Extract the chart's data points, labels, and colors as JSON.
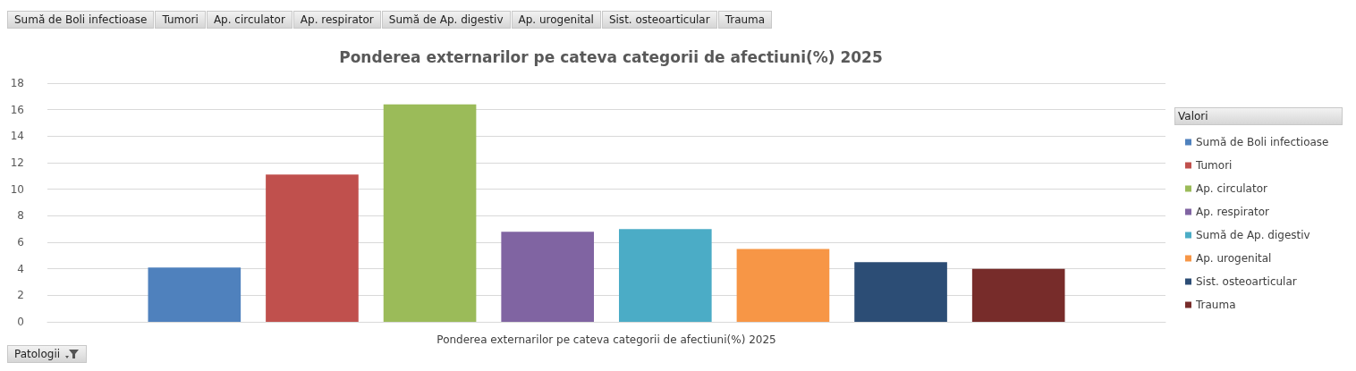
{
  "chart_data": {
    "type": "bar",
    "title": "Ponderea externarilor pe cateva categorii de afectiuni(%) 2025",
    "categories": [
      "Ponderea externarilor pe cateva categorii de afectiuni(%) 2025"
    ],
    "series": [
      {
        "name": "Sumă de Boli infectioase",
        "color": "#4f81bd",
        "values": [
          4.1
        ]
      },
      {
        "name": "Tumori",
        "color": "#c0504d",
        "values": [
          11.1
        ]
      },
      {
        "name": "Ap. circulator",
        "color": "#9bbb59",
        "values": [
          16.4
        ]
      },
      {
        "name": "Ap. respirator",
        "color": "#8064a2",
        "values": [
          6.8
        ]
      },
      {
        "name": "Sumă de Ap. digestiv",
        "color": "#4bacc6",
        "values": [
          7.0
        ]
      },
      {
        "name": "Ap. urogenital",
        "color": "#f79646",
        "values": [
          5.5
        ]
      },
      {
        "name": "Sist. osteoarticular",
        "color": "#2c4d75",
        "values": [
          4.5
        ]
      },
      {
        "name": "Trauma",
        "color": "#772c2a",
        "values": [
          4.0
        ]
      }
    ],
    "ylim": [
      0,
      18
    ],
    "yticks": [
      0,
      2,
      4,
      6,
      8,
      10,
      12,
      14,
      16,
      18
    ],
    "grid": "y",
    "legend": "right",
    "legend_title": "Valori",
    "annotations": [
      "Sumă de Boli infectioase",
      "Tumori",
      "Ap. circulator",
      "Ap. respirator",
      "Sumă de Ap. digestiv",
      "Ap. urogenital",
      "Sist. osteoarticular",
      "Trauma",
      "Patologii"
    ]
  }
}
